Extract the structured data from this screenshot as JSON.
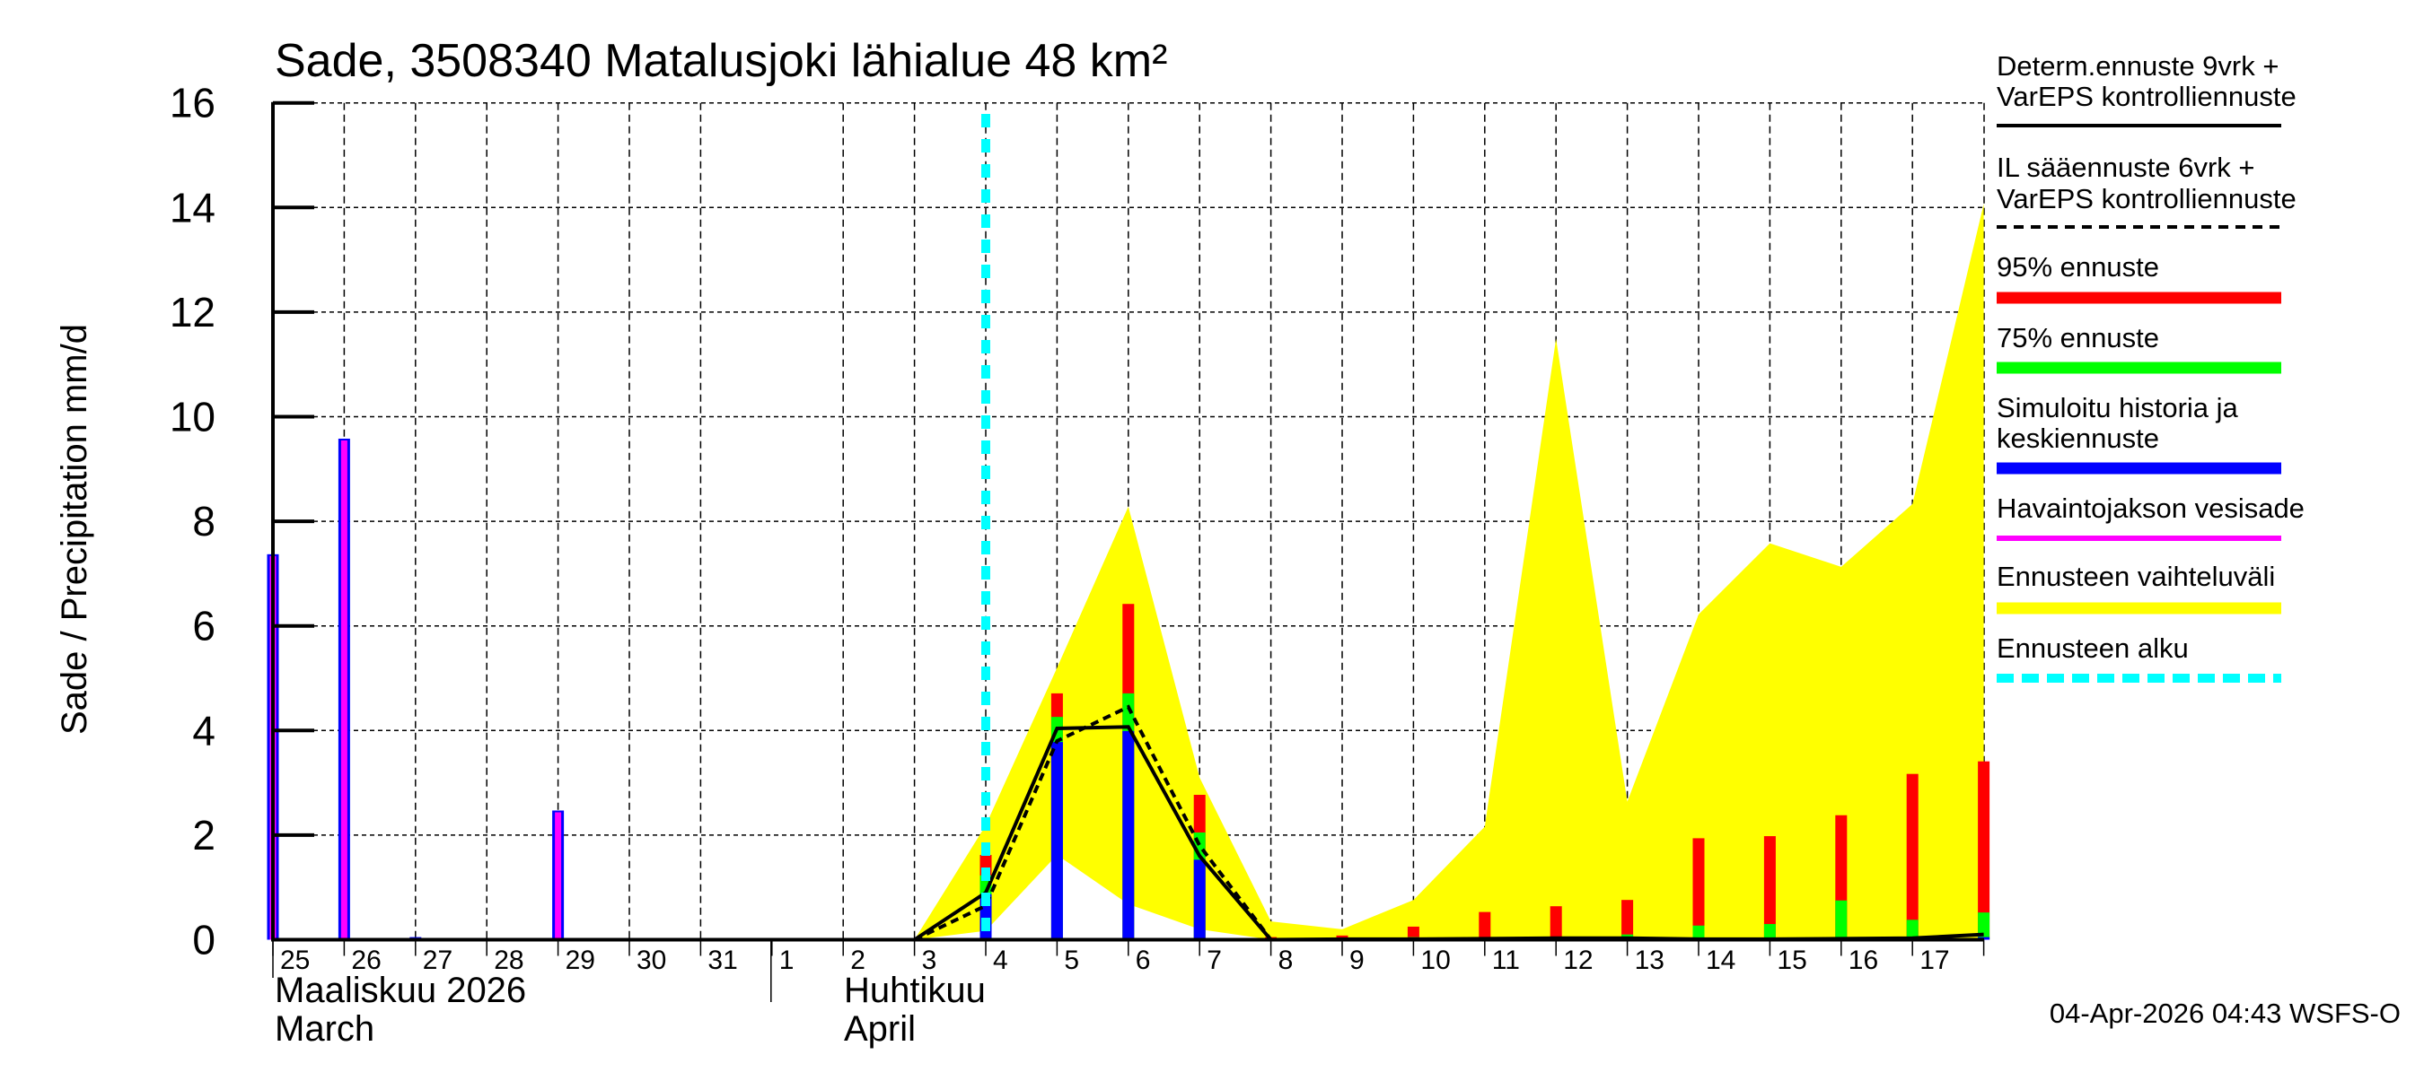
{
  "chart": {
    "title": "Sade, 3508340 Matalusjoki lähialue 48 km²",
    "ylabel": "Sade / Precipitation   mm/d",
    "timestamp": "04-Apr-2026 04:43 WSFS-O",
    "months": [
      {
        "line1": "Maaliskuu 2026",
        "line2": "March"
      },
      {
        "line1": "Huhtikuu",
        "line2": "April"
      }
    ],
    "yticks": [
      "0",
      "2",
      "4",
      "6",
      "8",
      "10",
      "12",
      "14",
      "16"
    ],
    "xticks": [
      "25",
      "26",
      "27",
      "28",
      "29",
      "30",
      "31",
      "1",
      "2",
      "3",
      "4",
      "5",
      "6",
      "7",
      "8",
      "9",
      "10",
      "11",
      "12",
      "13",
      "14",
      "15",
      "16",
      "17"
    ],
    "legend": [
      {
        "line1": "Determ.ennuste 9vrk +",
        "line2": "VarEPS kontrolliennuste",
        "swatch": "solid-line",
        "color": "#000000"
      },
      {
        "line1": "IL sääennuste 6vrk  +",
        "line2": "VarEPS kontrolliennuste",
        "swatch": "dashed-line",
        "color": "#000000"
      },
      {
        "line1": "95% ennuste",
        "line2": "",
        "swatch": "bar",
        "color": "#ff0000"
      },
      {
        "line1": "75% ennuste",
        "line2": "",
        "swatch": "bar",
        "color": "#00ff00"
      },
      {
        "line1": "Simuloitu historia ja",
        "line2": "keskiennuste",
        "swatch": "bar",
        "color": "#0000ff"
      },
      {
        "line1": "Havaintojakson vesisade",
        "line2": "",
        "swatch": "thin-bar",
        "color": "#ff00ff"
      },
      {
        "line1": "Ennusteen vaihteluväli",
        "line2": "",
        "swatch": "bar",
        "color": "#ffff00"
      },
      {
        "line1": "Ennusteen alku",
        "line2": "",
        "swatch": "dotted-line",
        "color": "#00ffff"
      }
    ]
  },
  "chart_data": {
    "type": "bar",
    "title": "Sade, 3508340 Matalusjoki lähialue 48 km²",
    "xlabel": "Maaliskuu 2026 / March — Huhtikuu / April",
    "ylabel": "Sade / Precipitation mm/d",
    "ylim": [
      0,
      16
    ],
    "grid": true,
    "legend_position": "right",
    "categories": [
      "25 Mar",
      "26 Mar",
      "27 Mar",
      "28 Mar",
      "29 Mar",
      "30 Mar",
      "31 Mar",
      "1 Apr",
      "2 Apr",
      "3 Apr",
      "4 Apr",
      "5 Apr",
      "6 Apr",
      "7 Apr",
      "8 Apr",
      "9 Apr",
      "10 Apr",
      "11 Apr",
      "12 Apr",
      "13 Apr",
      "14 Apr",
      "15 Apr",
      "16 Apr",
      "17 Apr",
      "18 Apr"
    ],
    "forecast_start": "4 Apr",
    "series": [
      {
        "name": "Havaintojakson vesisade",
        "kind": "bar",
        "color": "#ff00ff",
        "values": [
          7.37,
          9.58,
          0.05,
          0,
          2.47,
          0,
          0.02,
          0.02,
          0.02,
          null,
          null,
          null,
          null,
          null,
          null,
          null,
          null,
          null,
          null,
          null,
          null,
          null,
          null,
          null,
          null
        ]
      },
      {
        "name": "95% ennuste",
        "kind": "bar",
        "color": "#ff0000",
        "values": [
          null,
          null,
          null,
          null,
          null,
          null,
          null,
          null,
          null,
          null,
          1.62,
          4.71,
          6.42,
          2.77,
          0.05,
          0.08,
          0.25,
          0.53,
          0.64,
          0.76,
          1.94,
          1.98,
          2.38,
          3.17,
          3.41
        ]
      },
      {
        "name": "75% ennuste",
        "kind": "bar",
        "color": "#00ff00",
        "values": [
          null,
          null,
          null,
          null,
          null,
          null,
          null,
          null,
          null,
          null,
          1.23,
          4.26,
          4.71,
          2.05,
          0.02,
          0.02,
          0.05,
          0.03,
          0.05,
          0.1,
          0.27,
          0.3,
          0.75,
          0.38,
          0.52
        ]
      },
      {
        "name": "Simuloitu historia ja keskiennuste",
        "kind": "bar",
        "color": "#0000ff",
        "values": [
          7.37,
          9.58,
          0.05,
          0,
          2.47,
          0,
          0.02,
          0.02,
          0.02,
          0.02,
          0.87,
          3.78,
          3.99,
          1.53,
          0,
          0,
          0,
          0,
          0,
          0.02,
          0.02,
          0.02,
          0.02,
          0.02,
          0.05
        ]
      },
      {
        "name": "Ennusteen vaihteluväli (upper)",
        "kind": "area",
        "color": "#ffff00",
        "values": [
          null,
          null,
          null,
          null,
          null,
          null,
          null,
          null,
          null,
          0,
          2.19,
          5.2,
          8.28,
          3.1,
          0.35,
          0.2,
          0.76,
          2.16,
          11.49,
          2.64,
          6.22,
          7.58,
          7.13,
          8.33,
          14.07
        ]
      },
      {
        "name": "Ennusteen vaihteluväli (lower)",
        "kind": "area",
        "color": "#ffff00",
        "values": [
          null,
          null,
          null,
          null,
          null,
          null,
          null,
          null,
          null,
          0,
          0.17,
          1.62,
          0.68,
          0.2,
          0,
          0,
          0,
          0,
          0,
          0,
          0,
          0,
          0,
          0,
          0
        ]
      },
      {
        "name": "Determ.ennuste 9vrk + VarEPS kontrolliennuste",
        "kind": "line",
        "color": "#000000",
        "values": [
          null,
          null,
          null,
          null,
          null,
          null,
          null,
          null,
          null,
          0,
          0.9,
          4.04,
          4.07,
          1.6,
          0,
          0.01,
          0.01,
          0.02,
          0.03,
          0.03,
          0.01,
          0.01,
          0.02,
          0.03,
          0.1
        ]
      },
      {
        "name": "IL sääennuste 6vrk + VarEPS kontrolliennuste",
        "kind": "line-dashed",
        "color": "#000000",
        "values": [
          null,
          null,
          null,
          null,
          null,
          null,
          null,
          null,
          null,
          0,
          0.65,
          3.8,
          4.45,
          1.8,
          0
        ]
      }
    ]
  }
}
